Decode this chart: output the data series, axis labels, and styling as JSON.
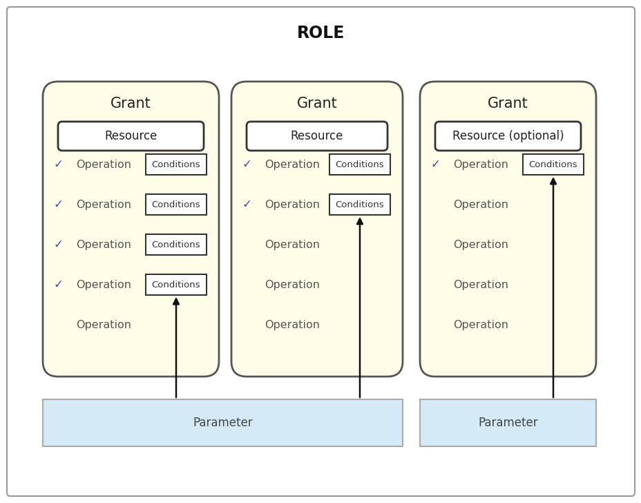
{
  "title": "ROLE",
  "bg_color": "#ffffff",
  "outer_border_color": "#999999",
  "grant_bg": "#fefee8",
  "grant_border": "#555555",
  "resource_border": "#333333",
  "conditions_border": "#333333",
  "param_bg": "#d4eaf7",
  "param_border": "#aaaaaa",
  "check_color": "#4444aa",
  "arrow_color": "#111111",
  "text_color": "#444444",
  "title_color": "#111111",
  "grants": [
    {
      "label": "Grant",
      "resource_label": "Resource",
      "operations": [
        {
          "check": true,
          "has_conditions": true
        },
        {
          "check": true,
          "has_conditions": true
        },
        {
          "check": true,
          "has_conditions": true
        },
        {
          "check": true,
          "has_conditions": true
        },
        {
          "check": false,
          "has_conditions": false
        }
      ],
      "arrow_to_op_idx": 3,
      "arrow_from_param_idx": 0
    },
    {
      "label": "Grant",
      "resource_label": "Resource",
      "operations": [
        {
          "check": true,
          "has_conditions": true
        },
        {
          "check": true,
          "has_conditions": true
        },
        {
          "check": false,
          "has_conditions": false
        },
        {
          "check": false,
          "has_conditions": false
        },
        {
          "check": false,
          "has_conditions": false
        }
      ],
      "arrow_to_op_idx": 1,
      "arrow_from_param_idx": 0
    },
    {
      "label": "Grant",
      "resource_label": "Resource (optional)",
      "operations": [
        {
          "check": true,
          "has_conditions": true
        },
        {
          "check": false,
          "has_conditions": false
        },
        {
          "check": false,
          "has_conditions": false
        },
        {
          "check": false,
          "has_conditions": false
        },
        {
          "check": false,
          "has_conditions": false
        }
      ],
      "arrow_to_op_idx": 0,
      "arrow_from_param_idx": 1
    }
  ],
  "parameters": [
    {
      "label": "Parameter"
    },
    {
      "label": "Parameter"
    }
  ]
}
